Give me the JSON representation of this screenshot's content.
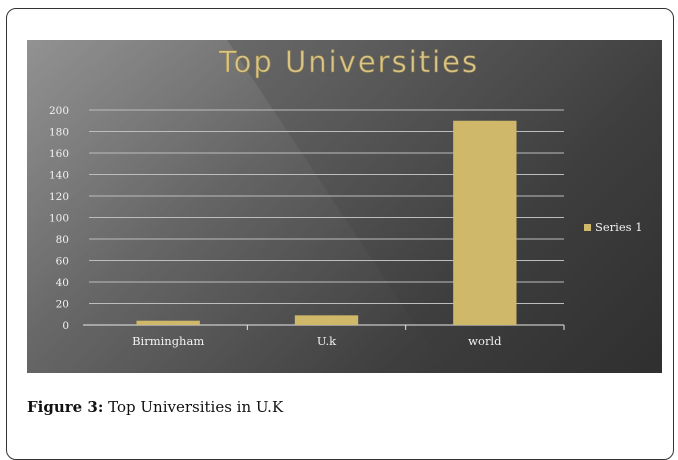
{
  "figure": {
    "label": "Figure 3:",
    "text": " Top Universities in U.K"
  },
  "chart_data": {
    "type": "bar",
    "title": "Top Universities",
    "categories": [
      "Birmingham",
      "U.k",
      "world"
    ],
    "series": [
      {
        "name": "Series 1",
        "values": [
          4,
          9,
          190
        ],
        "color": "#cfb86a"
      }
    ],
    "ylim": [
      0,
      200
    ],
    "yticks": [
      0,
      20,
      40,
      60,
      80,
      100,
      120,
      140,
      160,
      180,
      200
    ],
    "grid": true,
    "legend": "right",
    "xlabel": "",
    "ylabel": ""
  }
}
